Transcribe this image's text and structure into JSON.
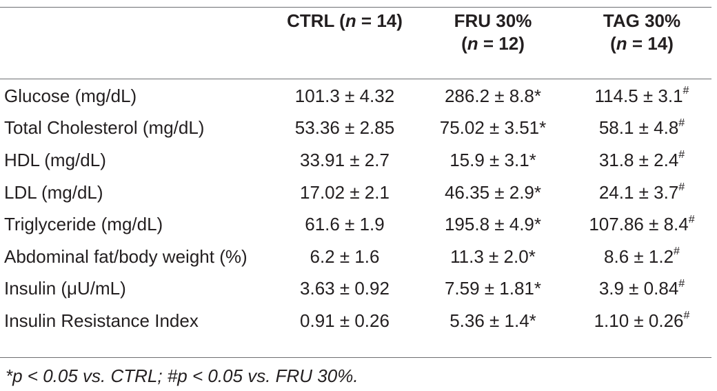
{
  "table": {
    "headers": [
      {
        "lines": [
          "CTRL (",
          "n",
          " = 14)"
        ]
      },
      {
        "line1": "FRU 30%",
        "line2": [
          "(",
          "n",
          " = 12)"
        ]
      },
      {
        "line1": "TAG 30%",
        "line2": [
          "(",
          "n",
          " = 14)"
        ]
      }
    ],
    "rows": [
      {
        "label": "Glucose (mg/dL)",
        "ctrl": "101.3 ± 4.32",
        "fru": "286.2 ± 8.8",
        "fru_mark": "*",
        "tag": "114.5 ± 3.1",
        "tag_mark": "#"
      },
      {
        "label": "Total Cholesterol (mg/dL)",
        "ctrl": "53.36 ± 2.85",
        "fru": "75.02 ± 3.51",
        "fru_mark": "*",
        "tag": "58.1 ± 4.8",
        "tag_mark": "#"
      },
      {
        "label": "HDL (mg/dL)",
        "ctrl": "33.91 ± 2.7",
        "fru": "15.9 ± 3.1",
        "fru_mark": "*",
        "tag": "31.8 ± 2.4",
        "tag_mark": "#"
      },
      {
        "label": "LDL (mg/dL)",
        "ctrl": "17.02 ± 2.1",
        "fru": "46.35 ± 2.9",
        "fru_mark": "*",
        "tag": "24.1 ± 3.7",
        "tag_mark": "#"
      },
      {
        "label": "Triglyceride (mg/dL)",
        "ctrl": "61.6 ± 1.9",
        "fru": "195.8 ± 4.9",
        "fru_mark": "*",
        "tag": "107.86 ± 8.4",
        "tag_mark": "#"
      },
      {
        "label": "Abdominal fat/body weight (%)",
        "ctrl": "6.2 ± 1.6",
        "fru": "11.3 ± 2.0",
        "fru_mark": "*",
        "tag": "8.6 ± 1.2",
        "tag_mark": "#"
      },
      {
        "label": "Insulin (μU/mL)",
        "ctrl": "3.63 ± 0.92",
        "fru": "7.59 ± 1.81",
        "fru_mark": "*",
        "tag": "3.9 ± 0.84",
        "tag_mark": "#"
      },
      {
        "label": "Insulin Resistance Index",
        "ctrl": "0.91 ± 0.26",
        "fru": "5.36 ± 1.4",
        "fru_mark": "*",
        "tag": "1.10 ± 0.26",
        "tag_mark": "#"
      }
    ]
  },
  "footnote": "*p < 0.05 vs. CTRL; #p < 0.05 vs. FRU 30%."
}
